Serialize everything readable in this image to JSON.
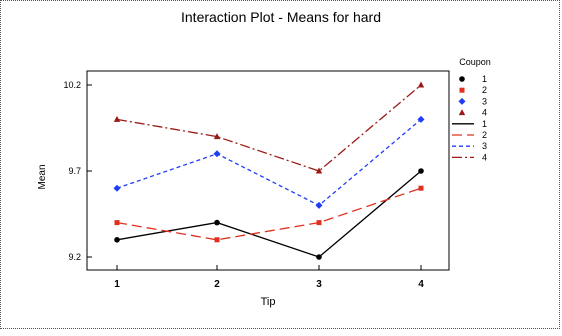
{
  "chart_data": {
    "type": "line",
    "title": "Interaction Plot - Means for hard",
    "xlabel": "Tip",
    "ylabel": "Mean",
    "categories": [
      "1",
      "2",
      "3",
      "4"
    ],
    "yticks": [
      "9.2",
      "9.7",
      "10.2"
    ],
    "ylim": [
      9.2,
      10.2
    ],
    "legend_title": "Coupon",
    "legend_position": "right",
    "grid": false,
    "series": [
      {
        "name": "1",
        "values": [
          9.3,
          9.4,
          9.2,
          9.7
        ],
        "color": "#000000",
        "marker": "circle",
        "dash": ""
      },
      {
        "name": "2",
        "values": [
          9.4,
          9.3,
          9.4,
          9.6
        ],
        "color": "#e0301e",
        "marker": "square",
        "dash": "10,5"
      },
      {
        "name": "3",
        "values": [
          9.6,
          9.8,
          9.5,
          10.0
        ],
        "color": "#1f3df5",
        "marker": "diamond",
        "dash": "4,3"
      },
      {
        "name": "4",
        "values": [
          10.0,
          9.9,
          9.7,
          10.2
        ],
        "color": "#9b1a14",
        "marker": "triangle",
        "dash": "10,3,2,3"
      }
    ]
  }
}
